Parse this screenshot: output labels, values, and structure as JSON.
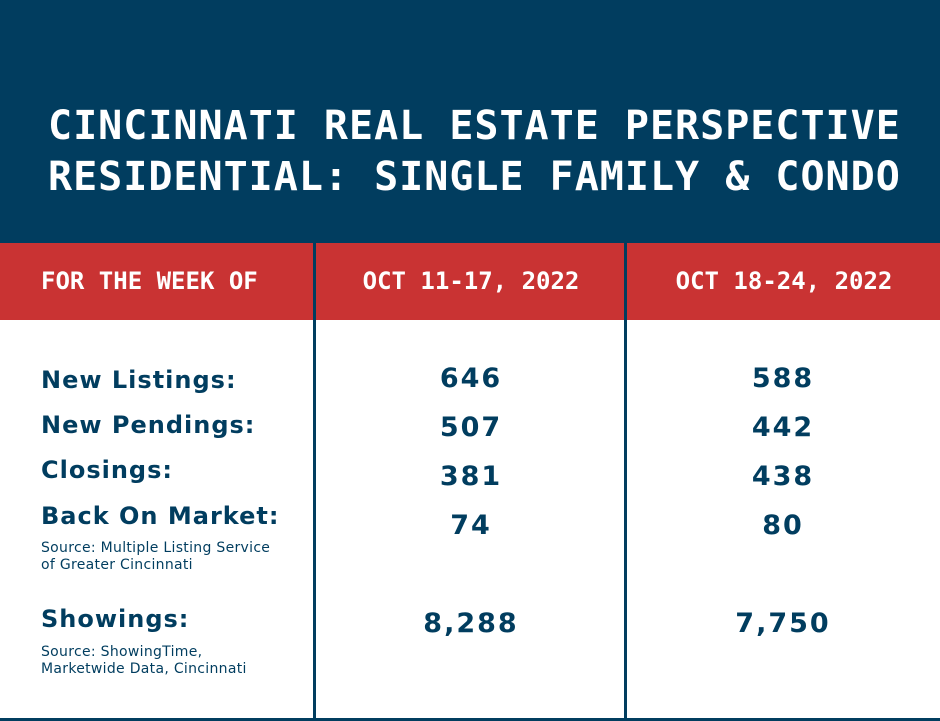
{
  "header": {
    "title_line1": "CINCINNATI REAL ESTATE PERSPECTIVE",
    "title_line2": "RESIDENTIAL: SINGLE FAMILY & CONDO"
  },
  "columns": {
    "label": "FOR THE WEEK OF",
    "week1": "OCT 11-17, 2022",
    "week2": "OCT 18-24, 2022"
  },
  "rows": [
    {
      "label": "New Listings:",
      "week1": "646",
      "week2": "588"
    },
    {
      "label": "New Pendings:",
      "week1": "507",
      "week2": "442"
    },
    {
      "label": "Closings:",
      "week1": "381",
      "week2": "438"
    },
    {
      "label": "Back On Market:",
      "week1": "74",
      "week2": "80"
    },
    {
      "label": "Showings:",
      "week1": "8,288",
      "week2": "7,750"
    }
  ],
  "sources": {
    "mls_line1": "Source: Multiple Listing Service",
    "mls_line2": "of Greater Cincinnati",
    "showings_line1": "Source: ShowingTime,",
    "showings_line2": "Marketwide Data, Cincinnati"
  },
  "colors": {
    "navy": "#013d5f",
    "red": "#c93333",
    "white": "#ffffff"
  }
}
